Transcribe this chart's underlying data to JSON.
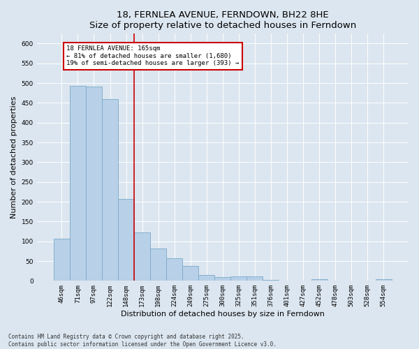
{
  "title": "18, FERNLEA AVENUE, FERNDOWN, BH22 8HE",
  "subtitle": "Size of property relative to detached houses in Ferndown",
  "xlabel": "Distribution of detached houses by size in Ferndown",
  "ylabel": "Number of detached properties",
  "footer": "Contains HM Land Registry data © Crown copyright and database right 2025.\nContains public sector information licensed under the Open Government Licence v3.0.",
  "categories": [
    "46sqm",
    "71sqm",
    "97sqm",
    "122sqm",
    "148sqm",
    "173sqm",
    "198sqm",
    "224sqm",
    "249sqm",
    "275sqm",
    "300sqm",
    "325sqm",
    "351sqm",
    "376sqm",
    "401sqm",
    "427sqm",
    "452sqm",
    "478sqm",
    "503sqm",
    "528sqm",
    "554sqm"
  ],
  "values": [
    107,
    493,
    491,
    459,
    207,
    122,
    82,
    57,
    38,
    14,
    10,
    11,
    11,
    2,
    1,
    1,
    5,
    1,
    0,
    1,
    4
  ],
  "bar_color": "#b8d0e8",
  "bar_edge_color": "#7aaac8",
  "vline_color": "#cc0000",
  "annotation_title": "18 FERNLEA AVENUE: 165sqm",
  "annotation_line1": "← 81% of detached houses are smaller (1,680)",
  "annotation_line2": "19% of semi-detached houses are larger (393) →",
  "annotation_box_color": "#cc0000",
  "ylim": [
    0,
    625
  ],
  "yticks": [
    0,
    50,
    100,
    150,
    200,
    250,
    300,
    350,
    400,
    450,
    500,
    550,
    600
  ],
  "fig_bg_color": "#dce6f0",
  "plot_bg_color": "#dce6f0",
  "title_fontsize": 9.5,
  "tick_fontsize": 6.5,
  "label_fontsize": 8,
  "footer_fontsize": 5.5
}
